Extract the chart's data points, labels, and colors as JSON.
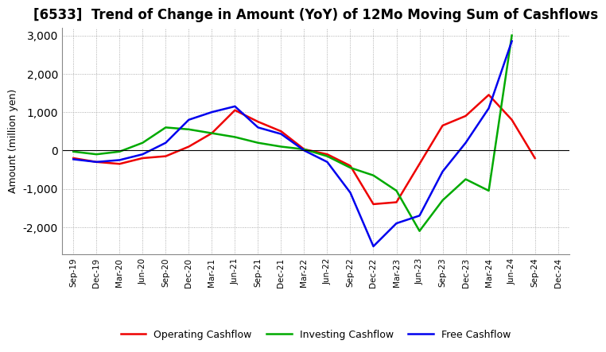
{
  "title": "[6533]  Trend of Change in Amount (YoY) of 12Mo Moving Sum of Cashflows",
  "ylabel": "Amount (million yen)",
  "x_labels": [
    "Sep-19",
    "Dec-19",
    "Mar-20",
    "Jun-20",
    "Sep-20",
    "Dec-20",
    "Mar-21",
    "Jun-21",
    "Sep-21",
    "Dec-21",
    "Mar-22",
    "Jun-22",
    "Sep-22",
    "Dec-22",
    "Mar-23",
    "Jun-23",
    "Sep-23",
    "Dec-23",
    "Mar-24",
    "Jun-24",
    "Sep-24",
    "Dec-24"
  ],
  "operating_cashflow": [
    -200,
    -300,
    -350,
    -200,
    -150,
    100,
    450,
    1050,
    750,
    500,
    30,
    -100,
    -400,
    -1400,
    -1350,
    null,
    650,
    900,
    1450,
    800,
    -200,
    null
  ],
  "investing_cashflow": [
    -30,
    -100,
    -30,
    200,
    600,
    550,
    450,
    350,
    200,
    100,
    30,
    -150,
    -450,
    -650,
    -1050,
    -2100,
    -1300,
    -750,
    -1050,
    3000,
    null,
    null
  ],
  "free_cashflow": [
    -230,
    -300,
    -250,
    -100,
    200,
    800,
    1000,
    1150,
    600,
    430,
    0,
    -300,
    -1100,
    -2500,
    -1900,
    -1700,
    -550,
    200,
    1100,
    2850,
    null,
    null
  ],
  "operating_color": "#ee0000",
  "investing_color": "#00aa00",
  "free_color": "#0000ee",
  "ylim": [
    -2700,
    3200
  ],
  "yticks": [
    -2000,
    -1000,
    0,
    1000,
    2000,
    3000
  ],
  "background_color": "#ffffff",
  "grid_color": "#999999",
  "line_width": 1.8,
  "title_fontsize": 12,
  "legend_labels": [
    "Operating Cashflow",
    "Investing Cashflow",
    "Free Cashflow"
  ]
}
